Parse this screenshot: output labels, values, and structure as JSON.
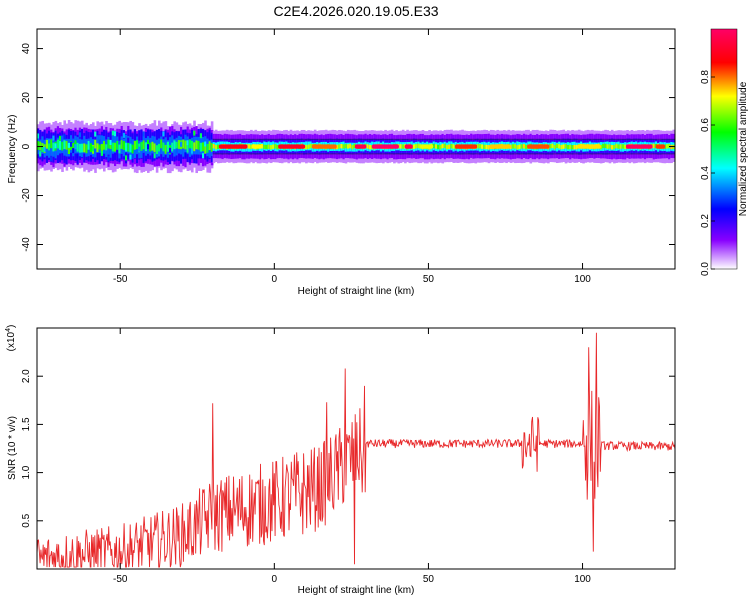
{
  "title": "C2E4.2026.020.19.05.E33",
  "chart_data": [
    {
      "type": "heatmap",
      "xlabel": "Height of straight line (km)",
      "ylabel": "Frequency (Hz)",
      "xlim": [
        -77,
        130
      ],
      "ylim": [
        -50,
        48
      ],
      "xticks": [
        -50,
        0,
        50,
        100
      ],
      "yticks": [
        -40,
        -20,
        0,
        20,
        40
      ],
      "grid": false,
      "colorbar": {
        "label": "Normalized spectral amplitude",
        "range": [
          0,
          1
        ],
        "ticks": [
          "0.0",
          "0.2",
          "0.4",
          "0.6",
          "0.8"
        ],
        "colors": [
          "#ffffff",
          "#8800ff",
          "#0000ff",
          "#00ffff",
          "#00ff00",
          "#ffff00",
          "#ff0000",
          "#ff0066"
        ]
      },
      "band": {
        "center_hz": 0,
        "segments": [
          {
            "x": [
              -77,
              -20
            ],
            "half_width_hz": 6,
            "peak_amplitude": 0.45
          },
          {
            "x": [
              -20,
              130
            ],
            "half_width_hz": 3,
            "peak_amplitude": 0.95
          }
        ]
      }
    },
    {
      "type": "line",
      "xlabel": "Height of straight line (km)",
      "ylabel": "SNR (10 * v/v)",
      "y_multiplier": "(x10",
      "y_multiplier_exp": "4",
      "xlim": [
        -77,
        130
      ],
      "ylim": [
        0,
        2.5
      ],
      "xticks": [
        -50,
        0,
        50,
        100
      ],
      "yticks": [
        0.5,
        1.0,
        1.5,
        2.0
      ],
      "grid": false,
      "color": "#e8282a",
      "series_shape": [
        {
          "x": -77,
          "y": 0.1
        },
        {
          "x": -50,
          "y": 0.18
        },
        {
          "x": -30,
          "y": 0.35
        },
        {
          "x": -20,
          "y": 0.55
        },
        {
          "x": 0,
          "y": 0.7
        },
        {
          "x": 15,
          "y": 0.85
        },
        {
          "x": 30,
          "y": 1.3
        },
        {
          "x": 50,
          "y": 1.3
        },
        {
          "x": 100,
          "y": 1.3
        },
        {
          "x": 105,
          "y": 1.28
        },
        {
          "x": 130,
          "y": 1.27
        }
      ],
      "spikes": [
        {
          "x": -20,
          "y": 1.72
        },
        {
          "x": 17,
          "y": 1.73
        },
        {
          "x": 23,
          "y": 2.08
        },
        {
          "x": 26,
          "y": 0.05
        },
        {
          "x": 102,
          "y": 2.3
        },
        {
          "x": 104.5,
          "y": 2.45
        },
        {
          "x": 103.5,
          "y": 0.18
        }
      ]
    }
  ]
}
